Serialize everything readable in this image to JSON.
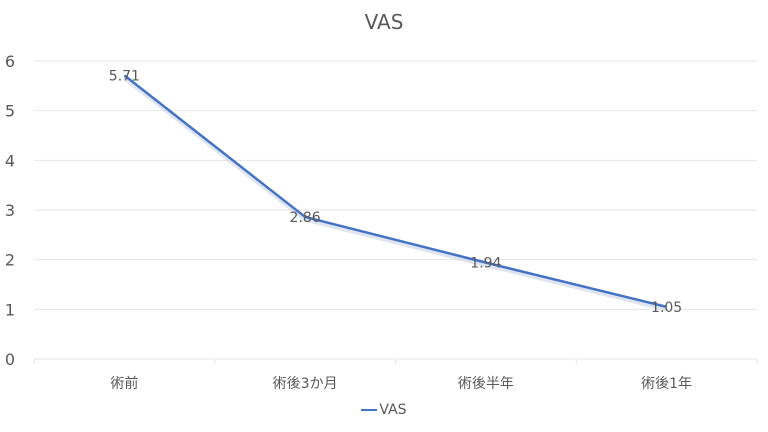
{
  "chart_data": {
    "type": "line",
    "title": "VAS",
    "categories": [
      "術前",
      "術後3か月",
      "術後半年",
      "術後1年"
    ],
    "series": [
      {
        "name": "VAS",
        "values": [
          5.71,
          2.86,
          1.94,
          1.05
        ],
        "color": "#4472c4"
      }
    ],
    "data_labels": [
      "5.71",
      "2.86",
      "1.94",
      "1.05"
    ],
    "xlabel": "",
    "ylabel": "",
    "ylim": [
      0,
      6
    ],
    "yticks": [
      "0",
      "1",
      "2",
      "3",
      "4",
      "5",
      "6"
    ],
    "grid": true,
    "legend_position": "bottom"
  }
}
